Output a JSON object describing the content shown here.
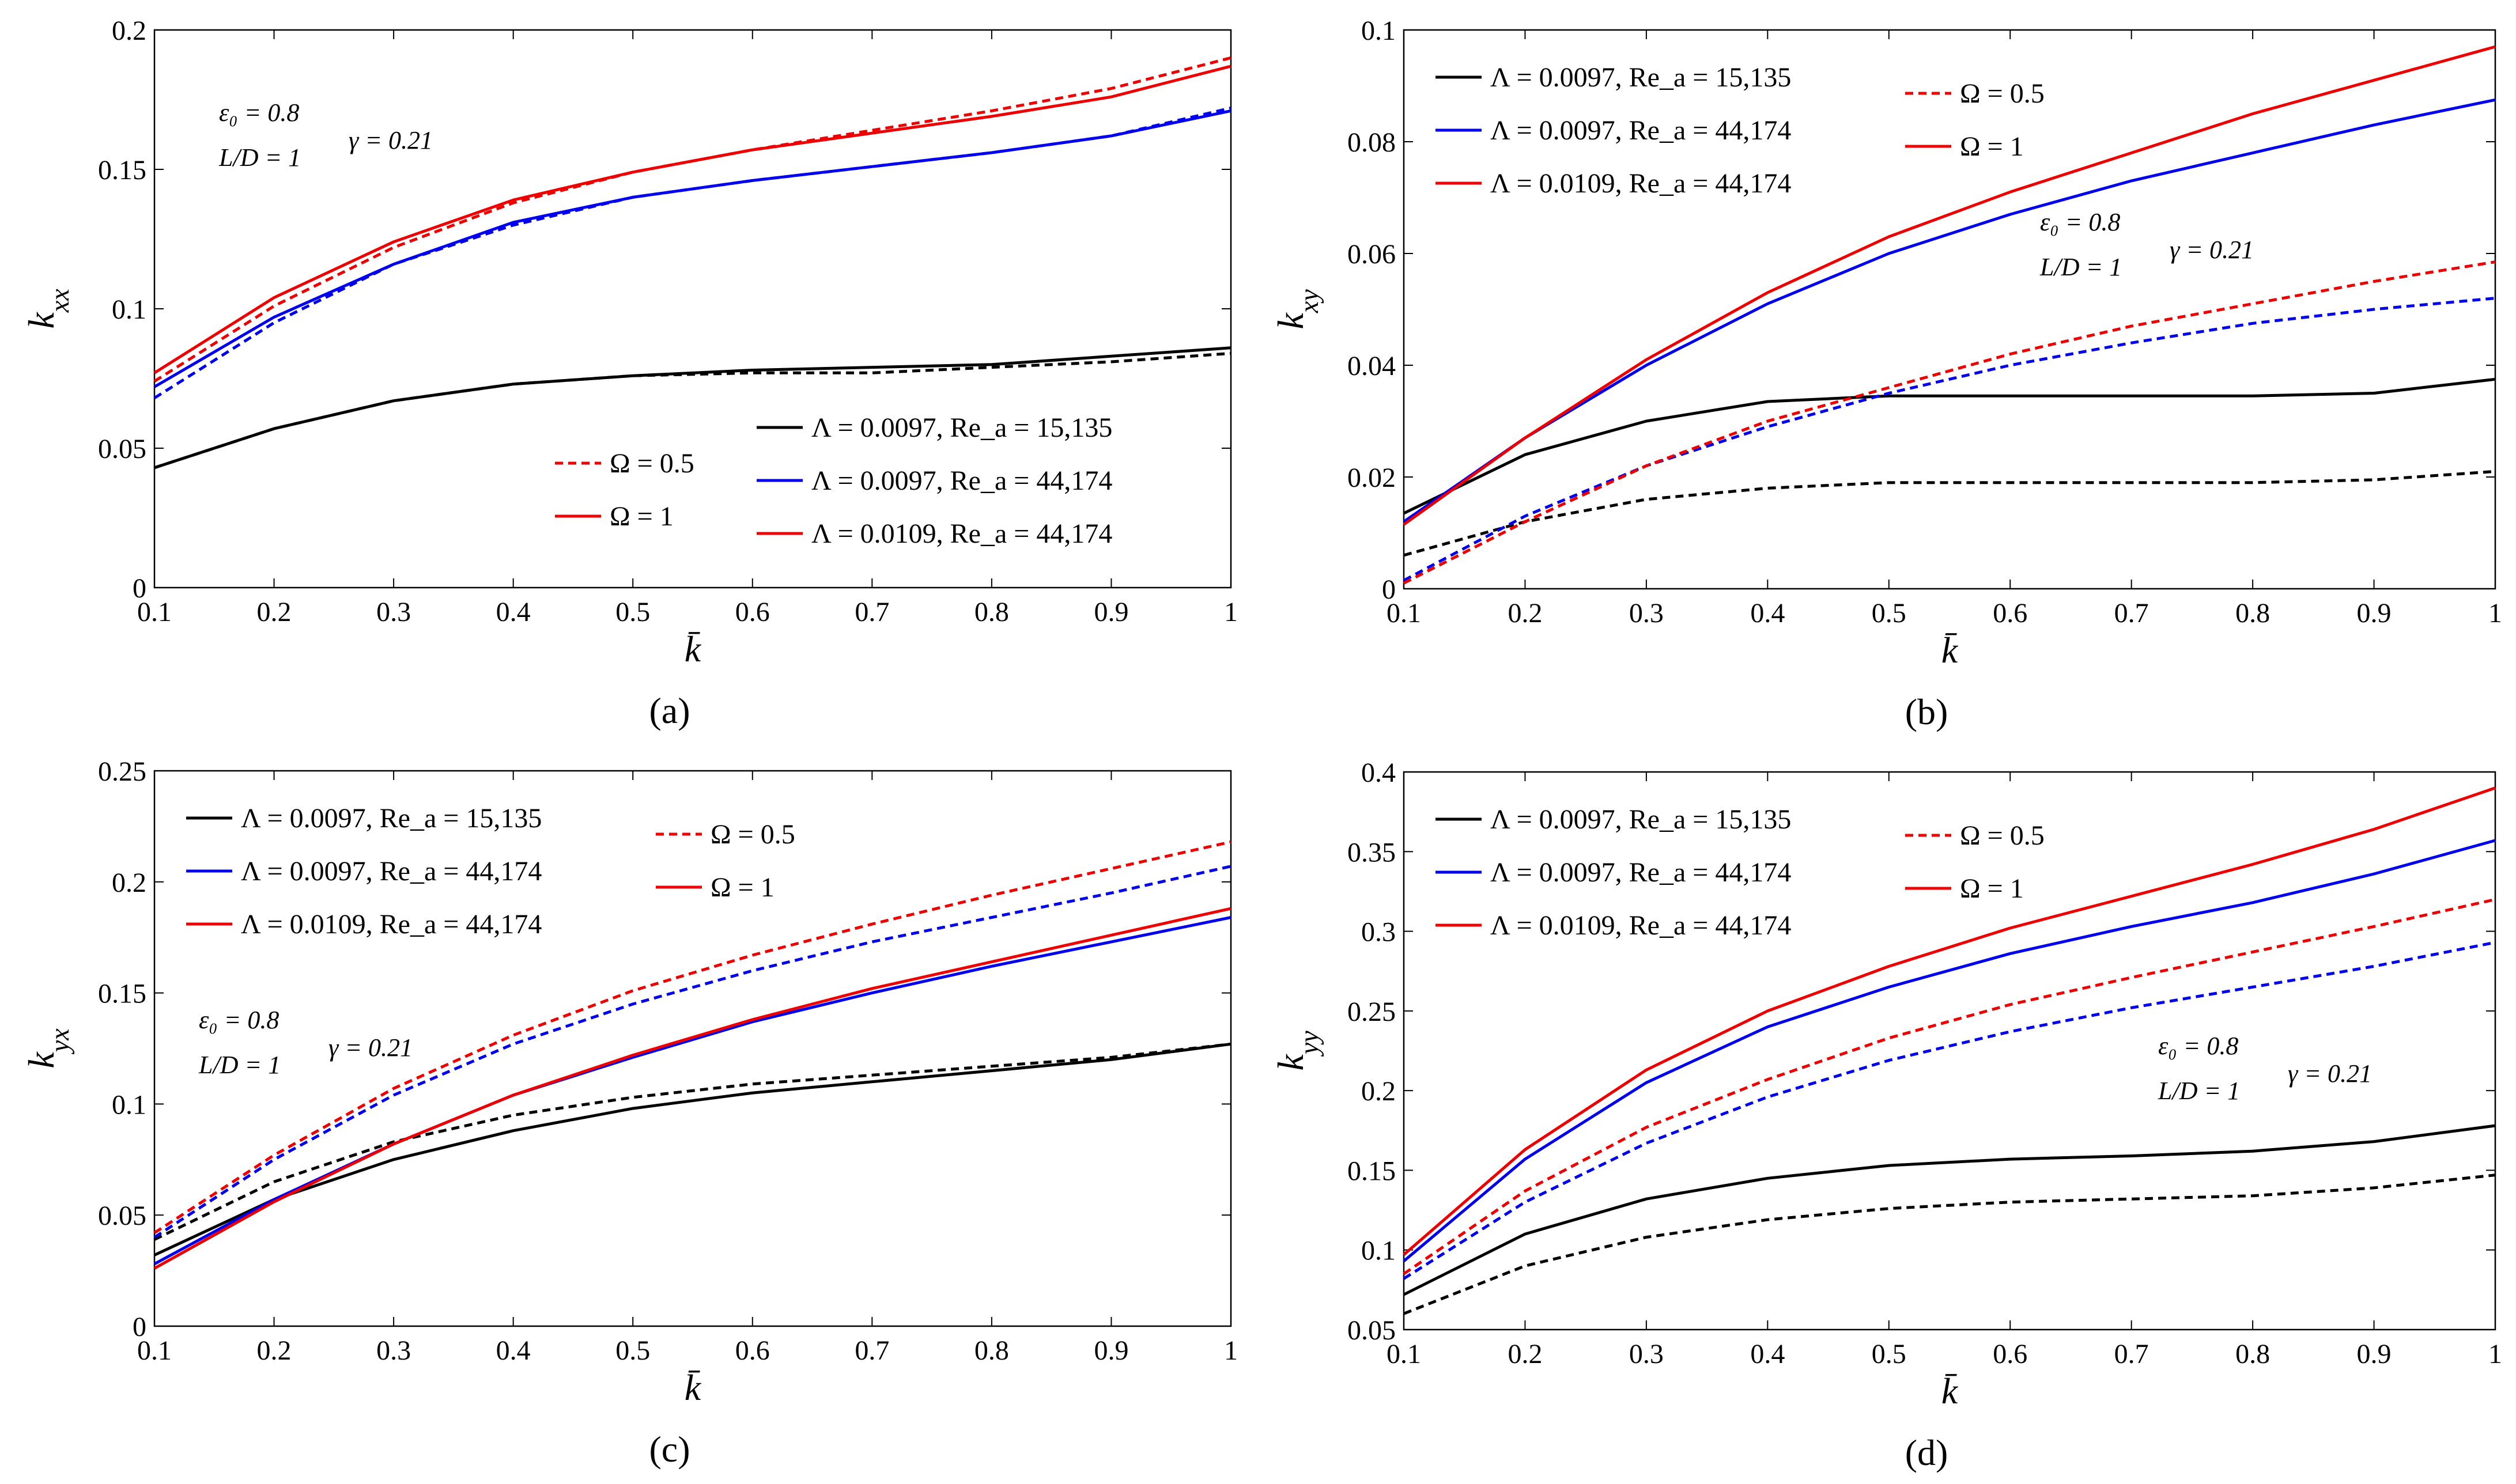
{
  "chart_data": [
    {
      "panel_label": "(a)",
      "type": "line",
      "ylabel": "k_xx",
      "xlabel": "k̄",
      "xlim": [
        0.1,
        1
      ],
      "ylim": [
        0,
        0.2
      ],
      "xticks": [
        "0.1",
        "0.2",
        "0.3",
        "0.4",
        "0.5",
        "0.6",
        "0.7",
        "0.8",
        "0.9",
        "1"
      ],
      "yticks": [
        "0",
        "0.05",
        "0.1",
        "0.15",
        "0.2"
      ],
      "x": [
        0.1,
        0.2,
        0.3,
        0.4,
        0.5,
        0.6,
        0.7,
        0.8,
        0.9,
        1.0
      ],
      "series": [
        {
          "name": "Λ = 0.0097, Re_a = 15,135",
          "color": "#000000",
          "dash": false,
          "values": [
            0.043,
            0.057,
            0.067,
            0.073,
            0.076,
            0.078,
            0.079,
            0.08,
            0.083,
            0.086
          ]
        },
        {
          "name": "",
          "color": "#000000",
          "dash": true,
          "values": [
            0.043,
            0.057,
            0.067,
            0.073,
            0.076,
            0.077,
            0.077,
            0.079,
            0.081,
            0.084
          ]
        },
        {
          "name": "Λ = 0.0097, Re_a = 44,174",
          "color": "#0000ee",
          "dash": false,
          "values": [
            0.072,
            0.097,
            0.116,
            0.131,
            0.14,
            0.146,
            0.151,
            0.156,
            0.162,
            0.171
          ]
        },
        {
          "name": "",
          "color": "#0000ee",
          "dash": true,
          "values": [
            0.068,
            0.095,
            0.116,
            0.13,
            0.14,
            0.146,
            0.151,
            0.156,
            0.162,
            0.172
          ]
        },
        {
          "name": "Λ = 0.0109, Re_a = 44,174",
          "color": "#ee0000",
          "dash": false,
          "values": [
            0.077,
            0.104,
            0.124,
            0.139,
            0.149,
            0.157,
            0.163,
            0.169,
            0.176,
            0.187
          ]
        },
        {
          "name": "",
          "color": "#ee0000",
          "dash": true,
          "values": [
            0.074,
            0.101,
            0.122,
            0.138,
            0.149,
            0.157,
            0.164,
            0.171,
            0.179,
            0.19
          ]
        }
      ],
      "line_styles": [
        {
          "label": "Ω = 0.5",
          "color": "#ee0000",
          "dash": true
        },
        {
          "label": "Ω = 1",
          "color": "#ee0000",
          "dash": false
        }
      ],
      "params": [
        "ε₀ = 0.8",
        "L/D = 1",
        "γ = 0.21"
      ]
    },
    {
      "panel_label": "(b)",
      "type": "line",
      "ylabel": "k_xy",
      "xlabel": "k̄",
      "xlim": [
        0.1,
        1
      ],
      "ylim": [
        0,
        0.1
      ],
      "xticks": [
        "0.1",
        "0.2",
        "0.3",
        "0.4",
        "0.5",
        "0.6",
        "0.7",
        "0.8",
        "0.9",
        "1"
      ],
      "yticks": [
        "0",
        "0.02",
        "0.04",
        "0.06",
        "0.08",
        "0.1"
      ],
      "x": [
        0.1,
        0.2,
        0.3,
        0.4,
        0.5,
        0.6,
        0.7,
        0.8,
        0.9,
        1.0
      ],
      "series": [
        {
          "name": "Λ = 0.0097, Re_a = 15,135",
          "color": "#000000",
          "dash": false,
          "values": [
            0.0135,
            0.024,
            0.03,
            0.0335,
            0.0345,
            0.0345,
            0.0345,
            0.0345,
            0.035,
            0.0375
          ]
        },
        {
          "name": "",
          "color": "#000000",
          "dash": true,
          "values": [
            0.006,
            0.012,
            0.016,
            0.018,
            0.019,
            0.019,
            0.019,
            0.019,
            0.0195,
            0.021
          ]
        },
        {
          "name": "Λ = 0.0097, Re_a = 44,174",
          "color": "#0000ee",
          "dash": false,
          "values": [
            0.012,
            0.027,
            0.04,
            0.051,
            0.06,
            0.067,
            0.073,
            0.078,
            0.083,
            0.0875
          ]
        },
        {
          "name": "",
          "color": "#0000ee",
          "dash": true,
          "values": [
            0.0015,
            0.013,
            0.022,
            0.029,
            0.035,
            0.04,
            0.044,
            0.0475,
            0.05,
            0.052
          ]
        },
        {
          "name": "Λ = 0.0109, Re_a = 44,174",
          "color": "#ee0000",
          "dash": false,
          "values": [
            0.0115,
            0.027,
            0.041,
            0.053,
            0.063,
            0.071,
            0.078,
            0.085,
            0.091,
            0.097
          ]
        },
        {
          "name": "",
          "color": "#ee0000",
          "dash": true,
          "values": [
            0.001,
            0.012,
            0.022,
            0.03,
            0.036,
            0.042,
            0.047,
            0.051,
            0.055,
            0.0585
          ]
        }
      ],
      "line_styles": [
        {
          "label": "Ω = 0.5",
          "color": "#ee0000",
          "dash": true
        },
        {
          "label": "Ω = 1",
          "color": "#ee0000",
          "dash": false
        }
      ],
      "params": [
        "ε₀ = 0.8",
        "L/D = 1",
        "γ = 0.21"
      ]
    },
    {
      "panel_label": "(c)",
      "type": "line",
      "ylabel": "k_yx",
      "xlabel": "k̄",
      "xlim": [
        0.1,
        1
      ],
      "ylim": [
        0,
        0.25
      ],
      "xticks": [
        "0.1",
        "0.2",
        "0.3",
        "0.4",
        "0.5",
        "0.6",
        "0.7",
        "0.8",
        "0.9",
        "1"
      ],
      "yticks": [
        "0",
        "0.05",
        "0.1",
        "0.15",
        "0.2",
        "0.25"
      ],
      "x": [
        0.1,
        0.2,
        0.3,
        0.4,
        0.5,
        0.6,
        0.7,
        0.8,
        0.9,
        1.0
      ],
      "series": [
        {
          "name": "Λ = 0.0097, Re_a = 15,135",
          "color": "#000000",
          "dash": false,
          "values": [
            0.032,
            0.057,
            0.075,
            0.088,
            0.098,
            0.105,
            0.11,
            0.115,
            0.12,
            0.127
          ]
        },
        {
          "name": "",
          "color": "#000000",
          "dash": true,
          "values": [
            0.039,
            0.065,
            0.083,
            0.095,
            0.103,
            0.109,
            0.113,
            0.117,
            0.121,
            0.127
          ]
        },
        {
          "name": "Λ = 0.0097, Re_a = 44,174",
          "color": "#0000ee",
          "dash": false,
          "values": [
            0.028,
            0.057,
            0.082,
            0.104,
            0.121,
            0.137,
            0.15,
            0.162,
            0.173,
            0.184
          ]
        },
        {
          "name": "",
          "color": "#0000ee",
          "dash": true,
          "values": [
            0.04,
            0.075,
            0.104,
            0.127,
            0.145,
            0.16,
            0.173,
            0.184,
            0.195,
            0.207
          ]
        },
        {
          "name": "Λ = 0.0109, Re_a = 44,174",
          "color": "#ee0000",
          "dash": false,
          "values": [
            0.026,
            0.056,
            0.082,
            0.104,
            0.122,
            0.138,
            0.152,
            0.164,
            0.176,
            0.188
          ]
        },
        {
          "name": "",
          "color": "#ee0000",
          "dash": true,
          "values": [
            0.042,
            0.077,
            0.107,
            0.131,
            0.151,
            0.167,
            0.181,
            0.194,
            0.206,
            0.218
          ]
        }
      ],
      "line_styles": [
        {
          "label": "Ω = 0.5",
          "color": "#ee0000",
          "dash": true
        },
        {
          "label": "Ω = 1",
          "color": "#ee0000",
          "dash": false
        }
      ],
      "params": [
        "ε₀ = 0.8",
        "L/D = 1",
        "γ = 0.21"
      ]
    },
    {
      "panel_label": "(d)",
      "type": "line",
      "ylabel": "k_yy",
      "xlabel": "k̄",
      "xlim": [
        0.1,
        1
      ],
      "ylim": [
        0.05,
        0.4
      ],
      "xticks": [
        "0.1",
        "0.2",
        "0.3",
        "0.4",
        "0.5",
        "0.6",
        "0.7",
        "0.8",
        "0.9",
        "1"
      ],
      "yticks": [
        "0.05",
        "0.1",
        "0.15",
        "0.2",
        "0.25",
        "0.3",
        "0.35",
        "0.4"
      ],
      "x": [
        0.1,
        0.2,
        0.3,
        0.4,
        0.5,
        0.6,
        0.7,
        0.8,
        0.9,
        1.0
      ],
      "series": [
        {
          "name": "Λ = 0.0097, Re_a = 15,135",
          "color": "#000000",
          "dash": false,
          "values": [
            0.072,
            0.11,
            0.132,
            0.145,
            0.153,
            0.157,
            0.159,
            0.162,
            0.168,
            0.178
          ]
        },
        {
          "name": "",
          "color": "#000000",
          "dash": true,
          "values": [
            0.06,
            0.09,
            0.108,
            0.119,
            0.126,
            0.13,
            0.132,
            0.134,
            0.139,
            0.147
          ]
        },
        {
          "name": "Λ = 0.0097, Re_a = 44,174",
          "color": "#0000ee",
          "dash": false,
          "values": [
            0.093,
            0.157,
            0.205,
            0.24,
            0.265,
            0.286,
            0.303,
            0.318,
            0.336,
            0.357
          ]
        },
        {
          "name": "",
          "color": "#0000ee",
          "dash": true,
          "values": [
            0.082,
            0.13,
            0.167,
            0.196,
            0.219,
            0.237,
            0.252,
            0.265,
            0.278,
            0.293
          ]
        },
        {
          "name": "Λ = 0.0109, Re_a = 44,174",
          "color": "#ee0000",
          "dash": false,
          "values": [
            0.097,
            0.163,
            0.213,
            0.25,
            0.278,
            0.302,
            0.322,
            0.342,
            0.364,
            0.39
          ]
        },
        {
          "name": "",
          "color": "#ee0000",
          "dash": true,
          "values": [
            0.085,
            0.137,
            0.177,
            0.207,
            0.233,
            0.254,
            0.271,
            0.287,
            0.303,
            0.32
          ]
        }
      ],
      "line_styles": [
        {
          "label": "Ω = 0.5",
          "color": "#ee0000",
          "dash": true
        },
        {
          "label": "Ω = 1",
          "color": "#ee0000",
          "dash": false
        }
      ],
      "params": [
        "ε₀ = 0.8",
        "L/D = 1",
        "γ = 0.21"
      ]
    }
  ]
}
